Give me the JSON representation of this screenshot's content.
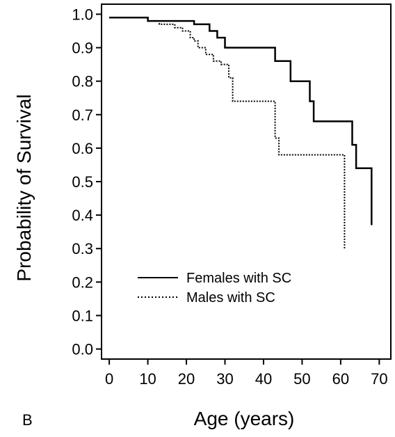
{
  "panel_label": "B",
  "chart_data": {
    "type": "line",
    "title": "",
    "xlabel": "Age (years)",
    "ylabel": "Probability of Survival",
    "xlim": [
      -2,
      73
    ],
    "ylim": [
      -0.03,
      1.03
    ],
    "x_ticks": [
      0,
      10,
      20,
      30,
      40,
      50,
      60,
      70
    ],
    "x_tick_labels": [
      "0",
      "10",
      "20",
      "30",
      "40",
      "50",
      "60",
      "70"
    ],
    "y_ticks": [
      0.0,
      0.1,
      0.2,
      0.3,
      0.4,
      0.5,
      0.6,
      0.7,
      0.8,
      0.9,
      1.0
    ],
    "y_tick_labels": [
      "0.0",
      "0.1",
      "0.2",
      "0.3",
      "0.4",
      "0.5",
      "0.6",
      "0.7",
      "0.8",
      "0.9",
      "1.0"
    ],
    "grid": false,
    "legend_position": "lower-left",
    "series": [
      {
        "name": "Females with SC",
        "line_style": "solid",
        "color": "#000000",
        "step_points": [
          [
            0,
            0.99
          ],
          [
            10,
            0.99
          ],
          [
            10,
            0.98
          ],
          [
            22,
            0.98
          ],
          [
            22,
            0.97
          ],
          [
            26,
            0.97
          ],
          [
            26,
            0.95
          ],
          [
            28,
            0.95
          ],
          [
            28,
            0.93
          ],
          [
            30,
            0.93
          ],
          [
            30,
            0.9
          ],
          [
            43,
            0.9
          ],
          [
            43,
            0.86
          ],
          [
            47,
            0.86
          ],
          [
            47,
            0.8
          ],
          [
            52,
            0.8
          ],
          [
            52,
            0.74
          ],
          [
            53,
            0.74
          ],
          [
            53,
            0.68
          ],
          [
            63,
            0.68
          ],
          [
            63,
            0.61
          ],
          [
            64,
            0.61
          ],
          [
            64,
            0.54
          ],
          [
            68,
            0.54
          ],
          [
            68,
            0.37
          ]
        ]
      },
      {
        "name": "Males with SC",
        "line_style": "dotted",
        "color": "#000000",
        "step_points": [
          [
            0,
            0.99
          ],
          [
            10,
            0.99
          ],
          [
            10,
            0.98
          ],
          [
            13,
            0.98
          ],
          [
            13,
            0.97
          ],
          [
            17,
            0.97
          ],
          [
            17,
            0.96
          ],
          [
            19,
            0.96
          ],
          [
            19,
            0.95
          ],
          [
            21,
            0.95
          ],
          [
            21,
            0.93
          ],
          [
            22,
            0.93
          ],
          [
            22,
            0.92
          ],
          [
            23,
            0.92
          ],
          [
            23,
            0.9
          ],
          [
            25,
            0.9
          ],
          [
            25,
            0.88
          ],
          [
            27,
            0.88
          ],
          [
            27,
            0.86
          ],
          [
            29,
            0.86
          ],
          [
            29,
            0.85
          ],
          [
            31,
            0.85
          ],
          [
            31,
            0.81
          ],
          [
            32,
            0.81
          ],
          [
            32,
            0.74
          ],
          [
            43,
            0.74
          ],
          [
            43,
            0.63
          ],
          [
            44,
            0.63
          ],
          [
            44,
            0.58
          ],
          [
            61,
            0.58
          ],
          [
            61,
            0.3
          ]
        ]
      }
    ]
  }
}
